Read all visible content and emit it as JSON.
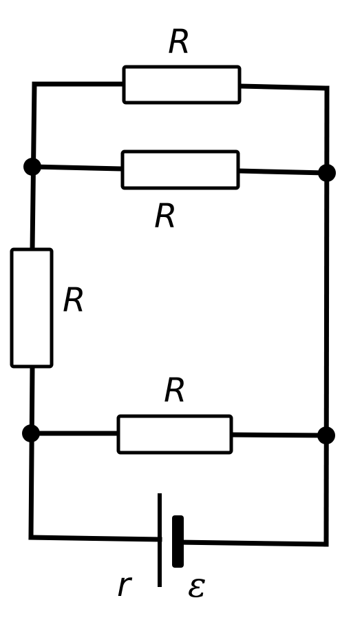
{
  "diagram": {
    "labels": {
      "resistor_top": "R",
      "resistor_upper_middle": "R",
      "resistor_left": "R",
      "resistor_bottom": "R",
      "internal_resistance": "r",
      "emf": "ε"
    }
  }
}
